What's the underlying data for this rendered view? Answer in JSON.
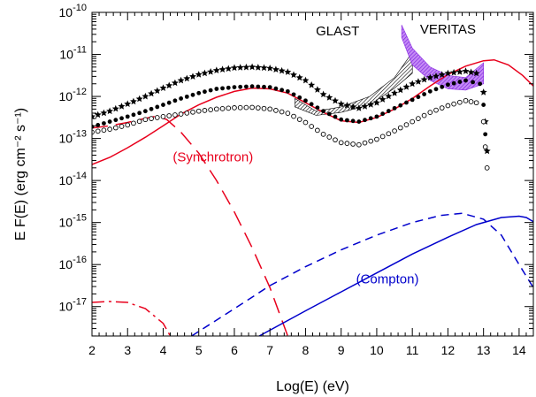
{
  "chart_data": {
    "type": "line",
    "xlabel": "Log(E)  (eV)",
    "ylabel": "E F(E)   (erg cm⁻² s⁻¹)",
    "xlim": [
      2,
      14.4
    ],
    "ylim_log10": [
      -17.7,
      -10
    ],
    "x_ticks": [
      2,
      3,
      4,
      5,
      6,
      7,
      8,
      9,
      10,
      11,
      12,
      13,
      14
    ],
    "y_ticks_exponent": [
      -10,
      -11,
      -12,
      -13,
      -14,
      -15,
      -16,
      -17
    ],
    "annotations": [
      {
        "text": "GLAST",
        "x": 8.9,
        "y_log10": -10.55,
        "color": "#000000"
      },
      {
        "text": "VERITAS",
        "x": 12.0,
        "y_log10": -10.5,
        "color": "#000000"
      },
      {
        "text": "(Synchrotron)",
        "x": 5.4,
        "y_log10": -13.55,
        "color": "#e8001c"
      },
      {
        "text": "(Compton)",
        "x": 10.3,
        "y_log10": -16.45,
        "color": "#0000cc"
      }
    ],
    "series": [
      {
        "style": "solid",
        "color": "#e8001c",
        "points": [
          [
            2,
            -13.62
          ],
          [
            2.5,
            -13.45
          ],
          [
            3,
            -13.22
          ],
          [
            3.5,
            -12.97
          ],
          [
            4,
            -12.7
          ],
          [
            4.5,
            -12.42
          ],
          [
            5,
            -12.2
          ],
          [
            5.5,
            -12.02
          ],
          [
            6,
            -11.88
          ],
          [
            6.5,
            -11.8
          ],
          [
            7,
            -11.82
          ],
          [
            7.5,
            -11.92
          ],
          [
            8,
            -12.15
          ],
          [
            8.5,
            -12.38
          ],
          [
            9,
            -12.58
          ],
          [
            9.5,
            -12.62
          ],
          [
            10,
            -12.5
          ],
          [
            10.5,
            -12.3
          ],
          [
            11,
            -12.05
          ],
          [
            11.5,
            -11.75
          ],
          [
            12,
            -11.48
          ],
          [
            12.5,
            -11.28
          ],
          [
            13,
            -11.15
          ],
          [
            13.3,
            -11.13
          ],
          [
            13.7,
            -11.25
          ],
          [
            14.1,
            -11.5
          ],
          [
            14.4,
            -11.75
          ]
        ]
      },
      {
        "style": "longdash",
        "color": "#e8001c",
        "points": [
          [
            2,
            -12.75
          ],
          [
            2.5,
            -12.7
          ],
          [
            3,
            -12.62
          ],
          [
            3.5,
            -12.52
          ],
          [
            3.8,
            -12.47
          ],
          [
            4.1,
            -12.55
          ],
          [
            4.5,
            -12.85
          ],
          [
            5,
            -13.35
          ],
          [
            5.5,
            -14.0
          ],
          [
            6,
            -14.75
          ],
          [
            6.5,
            -15.6
          ],
          [
            7,
            -16.55
          ],
          [
            7.5,
            -17.7
          ]
        ]
      },
      {
        "style": "dashdot",
        "color": "#e8001c",
        "points": [
          [
            2,
            -16.9
          ],
          [
            2.5,
            -16.88
          ],
          [
            3,
            -16.9
          ],
          [
            3.5,
            -17.05
          ],
          [
            4,
            -17.4
          ],
          [
            4.2,
            -17.7
          ]
        ]
      },
      {
        "style": "solid",
        "color": "#0000cc",
        "points": [
          [
            6.7,
            -17.7
          ],
          [
            8,
            -17.1
          ],
          [
            9,
            -16.65
          ],
          [
            10,
            -16.2
          ],
          [
            11,
            -15.75
          ],
          [
            12,
            -15.35
          ],
          [
            12.8,
            -15.05
          ],
          [
            13.5,
            -14.88
          ],
          [
            14,
            -14.85
          ],
          [
            14.2,
            -14.88
          ],
          [
            14.4,
            -14.98
          ]
        ]
      },
      {
        "style": "dash",
        "color": "#0000cc",
        "points": [
          [
            4.8,
            -17.7
          ],
          [
            6,
            -17.05
          ],
          [
            7,
            -16.5
          ],
          [
            8,
            -16.05
          ],
          [
            9,
            -15.65
          ],
          [
            10,
            -15.3
          ],
          [
            11,
            -15.0
          ],
          [
            11.8,
            -14.83
          ],
          [
            12.4,
            -14.78
          ],
          [
            13,
            -14.92
          ],
          [
            13.5,
            -15.3
          ],
          [
            14,
            -16.0
          ],
          [
            14.4,
            -16.55
          ]
        ]
      },
      {
        "style": "stars",
        "color": "#000000",
        "points": [
          [
            2,
            -12.48
          ],
          [
            2.5,
            -12.35
          ],
          [
            3,
            -12.18
          ],
          [
            3.5,
            -12.0
          ],
          [
            4,
            -11.8
          ],
          [
            4.5,
            -11.62
          ],
          [
            5,
            -11.48
          ],
          [
            5.5,
            -11.38
          ],
          [
            6,
            -11.32
          ],
          [
            6.5,
            -11.3
          ],
          [
            7,
            -11.33
          ],
          [
            7.5,
            -11.42
          ],
          [
            8,
            -11.62
          ],
          [
            8.5,
            -11.95
          ],
          [
            9,
            -12.18
          ],
          [
            9.5,
            -12.28
          ],
          [
            10,
            -12.15
          ],
          [
            10.5,
            -11.92
          ],
          [
            11,
            -11.7
          ],
          [
            11.5,
            -11.55
          ],
          [
            12,
            -11.45
          ],
          [
            12.5,
            -11.4
          ],
          [
            12.8,
            -11.45
          ],
          [
            13,
            -11.9
          ],
          [
            13.05,
            -12.6
          ],
          [
            13.1,
            -13.3
          ]
        ]
      },
      {
        "style": "dots",
        "color": "#000000",
        "points": [
          [
            2,
            -12.72
          ],
          [
            2.5,
            -12.6
          ],
          [
            3,
            -12.48
          ],
          [
            3.5,
            -12.35
          ],
          [
            4,
            -12.2
          ],
          [
            4.5,
            -12.05
          ],
          [
            5,
            -11.92
          ],
          [
            5.5,
            -11.82
          ],
          [
            6,
            -11.78
          ],
          [
            6.5,
            -11.76
          ],
          [
            7,
            -11.78
          ],
          [
            7.5,
            -11.88
          ],
          [
            8,
            -12.1
          ],
          [
            8.5,
            -12.35
          ],
          [
            9,
            -12.55
          ],
          [
            9.5,
            -12.6
          ],
          [
            10,
            -12.48
          ],
          [
            10.5,
            -12.28
          ],
          [
            11,
            -12.08
          ],
          [
            11.5,
            -11.88
          ],
          [
            12,
            -11.72
          ],
          [
            12.5,
            -11.62
          ],
          [
            12.9,
            -11.7
          ],
          [
            13,
            -12.2
          ],
          [
            13.05,
            -12.9
          ]
        ]
      },
      {
        "style": "circles",
        "color": "#000000",
        "points": [
          [
            2,
            -12.85
          ],
          [
            2.5,
            -12.78
          ],
          [
            3,
            -12.68
          ],
          [
            3.5,
            -12.55
          ],
          [
            4,
            -12.48
          ],
          [
            4.5,
            -12.42
          ],
          [
            5,
            -12.35
          ],
          [
            5.5,
            -12.3
          ],
          [
            6,
            -12.27
          ],
          [
            6.5,
            -12.26
          ],
          [
            7,
            -12.3
          ],
          [
            7.5,
            -12.4
          ],
          [
            8,
            -12.62
          ],
          [
            8.5,
            -12.9
          ],
          [
            9,
            -13.1
          ],
          [
            9.5,
            -13.15
          ],
          [
            10,
            -13.02
          ],
          [
            10.5,
            -12.82
          ],
          [
            11,
            -12.6
          ],
          [
            11.5,
            -12.38
          ],
          [
            12,
            -12.22
          ],
          [
            12.5,
            -12.1
          ],
          [
            12.8,
            -12.15
          ],
          [
            13,
            -12.6
          ],
          [
            13.05,
            -13.2
          ],
          [
            13.1,
            -13.7
          ]
        ]
      },
      {
        "style": "hatched-black",
        "color": "#000000",
        "upper": [
          [
            7.7,
            -12.05
          ],
          [
            8.3,
            -12.35
          ],
          [
            9,
            -12.25
          ],
          [
            9.8,
            -12.0
          ],
          [
            10.5,
            -11.55
          ],
          [
            11.0,
            -10.95
          ]
        ],
        "lower": [
          [
            7.7,
            -12.25
          ],
          [
            8.3,
            -12.45
          ],
          [
            9,
            -12.38
          ],
          [
            9.8,
            -12.2
          ],
          [
            10.5,
            -11.8
          ],
          [
            11.0,
            -11.45
          ]
        ]
      },
      {
        "style": "hatched-violet",
        "color": "#8a2be2",
        "upper": [
          [
            10.7,
            -10.3
          ],
          [
            11.0,
            -10.85
          ],
          [
            11.5,
            -11.3
          ],
          [
            12.0,
            -11.5
          ],
          [
            12.5,
            -11.55
          ],
          [
            13.0,
            -11.2
          ]
        ],
        "lower": [
          [
            10.7,
            -10.6
          ],
          [
            11.0,
            -11.25
          ],
          [
            11.5,
            -11.62
          ],
          [
            12.0,
            -11.82
          ],
          [
            12.5,
            -11.85
          ],
          [
            13.0,
            -11.7
          ]
        ]
      }
    ]
  }
}
